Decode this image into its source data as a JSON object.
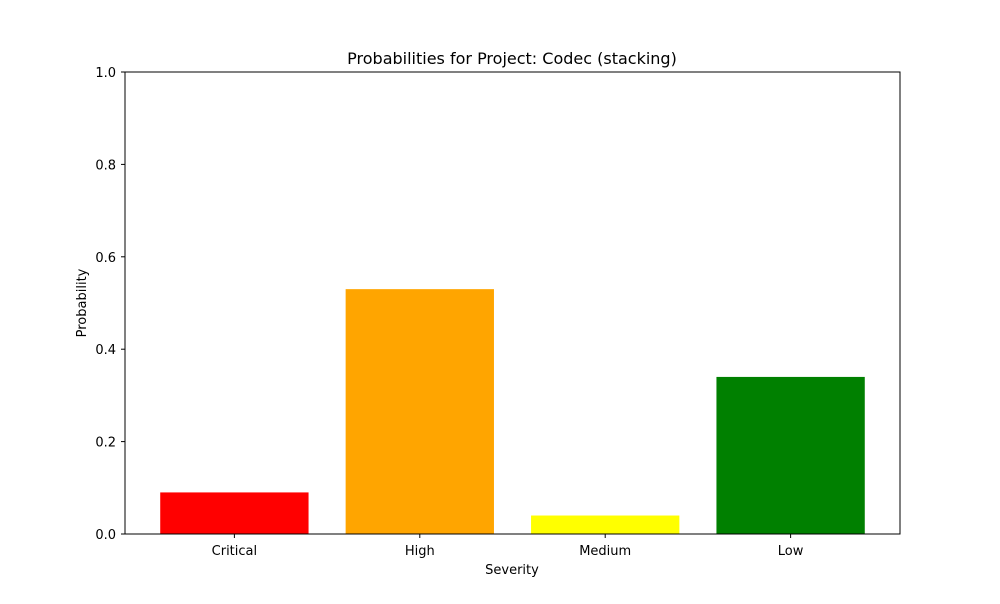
{
  "chart_data": {
    "type": "bar",
    "title": "Probabilities for Project: Codec (stacking)",
    "xlabel": "Severity",
    "ylabel": "Probability",
    "categories": [
      "Critical",
      "High",
      "Medium",
      "Low"
    ],
    "values": [
      0.09,
      0.53,
      0.04,
      0.34
    ],
    "colors": [
      "#ff0000",
      "#ffa500",
      "#ffff00",
      "#008000"
    ],
    "ylim": [
      0,
      1.0
    ],
    "yticks": [
      0.0,
      0.2,
      0.4,
      0.6,
      0.8,
      1.0
    ],
    "ytick_labels": [
      "0.0",
      "0.2",
      "0.4",
      "0.6",
      "0.8",
      "1.0"
    ],
    "grid": false,
    "legend": "none"
  }
}
